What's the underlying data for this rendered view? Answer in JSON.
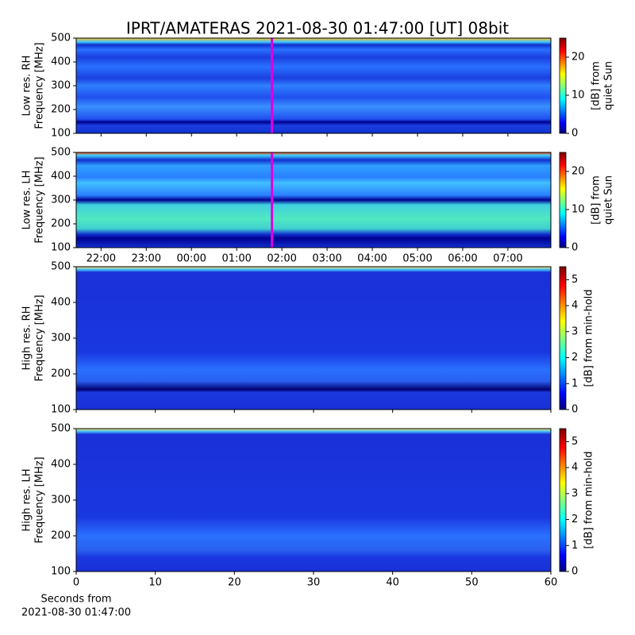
{
  "title": "IPRT/AMATERAS 2021-08-30 01:47:00 [UT]   08bit",
  "chart_data": [
    {
      "type": "heatmap",
      "ylabel_lines": [
        "Low res. RH",
        "Frequency [MHz]"
      ],
      "ylim": [
        100,
        500
      ],
      "yticks": [
        100,
        200,
        300,
        400,
        500
      ],
      "xlim": [
        -2.55,
        7.95
      ],
      "xticks": [
        -2,
        -1,
        0,
        1,
        2,
        3,
        4,
        5,
        6,
        7
      ],
      "vline_x": 1.78,
      "vline_color": "#e000e0",
      "colorbar_label_lines": [
        "[dB] from",
        "quiet Sun"
      ],
      "clim": [
        0,
        25
      ],
      "cticks": [
        0,
        10,
        20
      ]
    },
    {
      "type": "heatmap",
      "ylabel_lines": [
        "Low res. LH",
        "Frequency [MHz]"
      ],
      "ylim": [
        100,
        500
      ],
      "yticks": [
        100,
        200,
        300,
        400,
        500
      ],
      "xlim": [
        -2.55,
        7.95
      ],
      "xticks": [
        {
          "value": -2,
          "label": "22:00"
        },
        {
          "value": -1,
          "label": "23:00"
        },
        {
          "value": 0,
          "label": "00:00"
        },
        {
          "value": 1,
          "label": "01:00"
        },
        {
          "value": 2,
          "label": "02:00"
        },
        {
          "value": 3,
          "label": "03:00"
        },
        {
          "value": 4,
          "label": "04:00"
        },
        {
          "value": 5,
          "label": "05:00"
        },
        {
          "value": 6,
          "label": "06:00"
        },
        {
          "value": 7,
          "label": "07:00"
        }
      ],
      "vline_x": 1.78,
      "vline_color": "#e000e0",
      "colorbar_label_lines": [
        "[dB] from",
        "quiet Sun"
      ],
      "clim": [
        0,
        25
      ],
      "cticks": [
        0,
        10,
        20
      ]
    },
    {
      "type": "heatmap",
      "ylabel_lines": [
        "High res. RH",
        "Frequency [MHz]"
      ],
      "ylim": [
        100,
        500
      ],
      "yticks": [
        100,
        200,
        300,
        400,
        500
      ],
      "xlim": [
        0,
        60
      ],
      "xticks": [
        0,
        10,
        20,
        30,
        40,
        50,
        60
      ],
      "xtick_labels": false,
      "colorbar_label_lines": [
        "[dB] from min-hold"
      ],
      "clim": [
        0,
        5.5
      ],
      "cticks": [
        0,
        1,
        2,
        3,
        4,
        5
      ]
    },
    {
      "type": "heatmap",
      "ylabel_lines": [
        "High res. LH",
        "Frequency [MHz]"
      ],
      "ylim": [
        100,
        500
      ],
      "yticks": [
        100,
        200,
        300,
        400,
        500
      ],
      "xlim": [
        0,
        60
      ],
      "xticks": [
        0,
        10,
        20,
        30,
        40,
        50,
        60
      ],
      "xtick_labels": true,
      "xlabel_lines": [
        "Seconds from",
        "2021-08-30 01:47:00"
      ],
      "colorbar_label_lines": [
        "[dB] from min-hold"
      ],
      "clim": [
        0,
        5.5
      ],
      "cticks": [
        0,
        1,
        2,
        3,
        4,
        5
      ]
    }
  ]
}
